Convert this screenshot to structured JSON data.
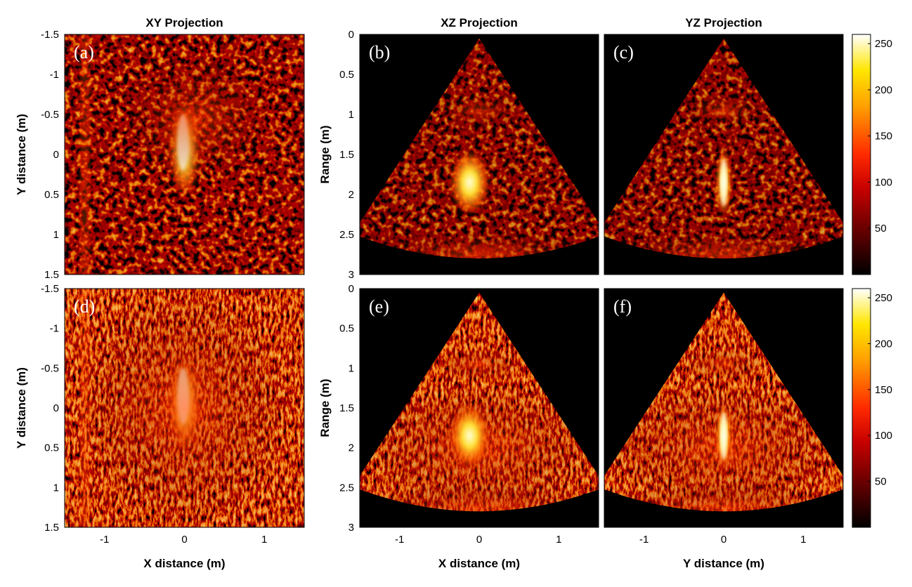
{
  "figure": {
    "columns": [
      {
        "title": "XY Projection"
      },
      {
        "title": "XZ Projection"
      },
      {
        "title": "YZ Projection"
      }
    ],
    "panels": [
      {
        "label": "(a)",
        "kind": "xy",
        "row": 0,
        "col": 0,
        "noise": "low"
      },
      {
        "label": "(b)",
        "kind": "xz",
        "row": 0,
        "col": 1,
        "noise": "low"
      },
      {
        "label": "(c)",
        "kind": "yz",
        "row": 0,
        "col": 2,
        "noise": "low"
      },
      {
        "label": "(d)",
        "kind": "xy",
        "row": 1,
        "col": 0,
        "noise": "high"
      },
      {
        "label": "(e)",
        "kind": "xz",
        "row": 1,
        "col": 1,
        "noise": "high"
      },
      {
        "label": "(f)",
        "kind": "yz",
        "row": 1,
        "col": 2,
        "noise": "high"
      }
    ],
    "axes": {
      "y_distance_label": "Y distance (m)",
      "range_label": "Range (m)",
      "x_distance_label": "X distance (m)",
      "y_distance_x_label": "Y distance (m)",
      "xy_y_ticks": [
        "-1.5",
        "-1",
        "-0.5",
        "0",
        "0.5",
        "1",
        "1.5"
      ],
      "xy_y_tick_values": [
        -1.5,
        -1,
        -0.5,
        0,
        0.5,
        1,
        1.5
      ],
      "range_ticks": [
        "0",
        "0.5",
        "1",
        "1.5",
        "2",
        "2.5",
        "3"
      ],
      "range_tick_values": [
        0,
        0.5,
        1,
        1.5,
        2,
        2.5,
        3
      ],
      "x_ticks": [
        "-1",
        "0",
        "1"
      ],
      "x_tick_values": [
        -1,
        0,
        1
      ],
      "x_range": [
        -1.5,
        1.5
      ],
      "range_range": [
        0,
        3
      ]
    },
    "colorbar": {
      "ticks": [
        "50",
        "100",
        "150",
        "200",
        "250"
      ],
      "tick_values": [
        50,
        100,
        150,
        200,
        250
      ],
      "range": [
        0,
        260
      ],
      "colormap": "hot"
    }
  }
}
